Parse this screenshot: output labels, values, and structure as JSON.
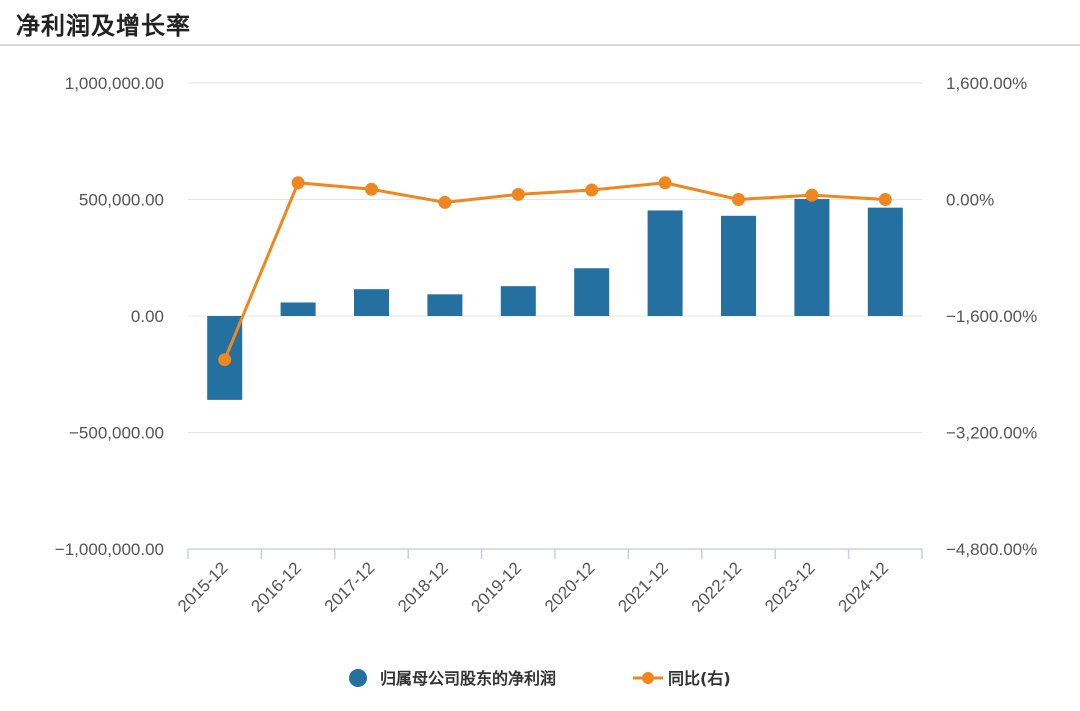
{
  "title": "净利润及增长率",
  "colors": {
    "bar": "#2470a0",
    "line": "#f0861f",
    "grid": "#e6e6e6",
    "axis": "#c8d0e0"
  },
  "chart_data": {
    "type": "bar+line",
    "categories": [
      "2015-12",
      "2016-12",
      "2017-12",
      "2018-12",
      "2019-12",
      "2020-12",
      "2021-12",
      "2022-12",
      "2023-12",
      "2024-12"
    ],
    "series": [
      {
        "name": "归属母公司股东的净利润",
        "type": "bar",
        "axis": "left",
        "values": [
          -360000,
          58000,
          115000,
          93000,
          128000,
          205000,
          453000,
          430000,
          502000,
          465000
        ]
      },
      {
        "name": "同比(右)",
        "type": "line",
        "axis": "right",
        "values": [
          -2200,
          230,
          140,
          -40,
          70,
          130,
          230,
          0,
          60,
          0
        ]
      }
    ],
    "left_axis": {
      "min": -1000000,
      "max": 1000000,
      "ticks": [
        -1000000,
        -500000,
        0,
        500000,
        1000000
      ],
      "tick_labels": [
        "−1,000,000.00",
        "−500,000.00",
        "0.00",
        "500,000.00",
        "1,000,000.00"
      ]
    },
    "right_axis": {
      "min": -4800,
      "max": 1600,
      "ticks": [
        -4800,
        -3200,
        -1600,
        0,
        1600
      ],
      "tick_labels": [
        "−4,800.00%",
        "−3,200.00%",
        "−1,600.00%",
        "0.00%",
        "1,600.00%"
      ]
    },
    "grid": true,
    "legend": "bottom-center"
  }
}
